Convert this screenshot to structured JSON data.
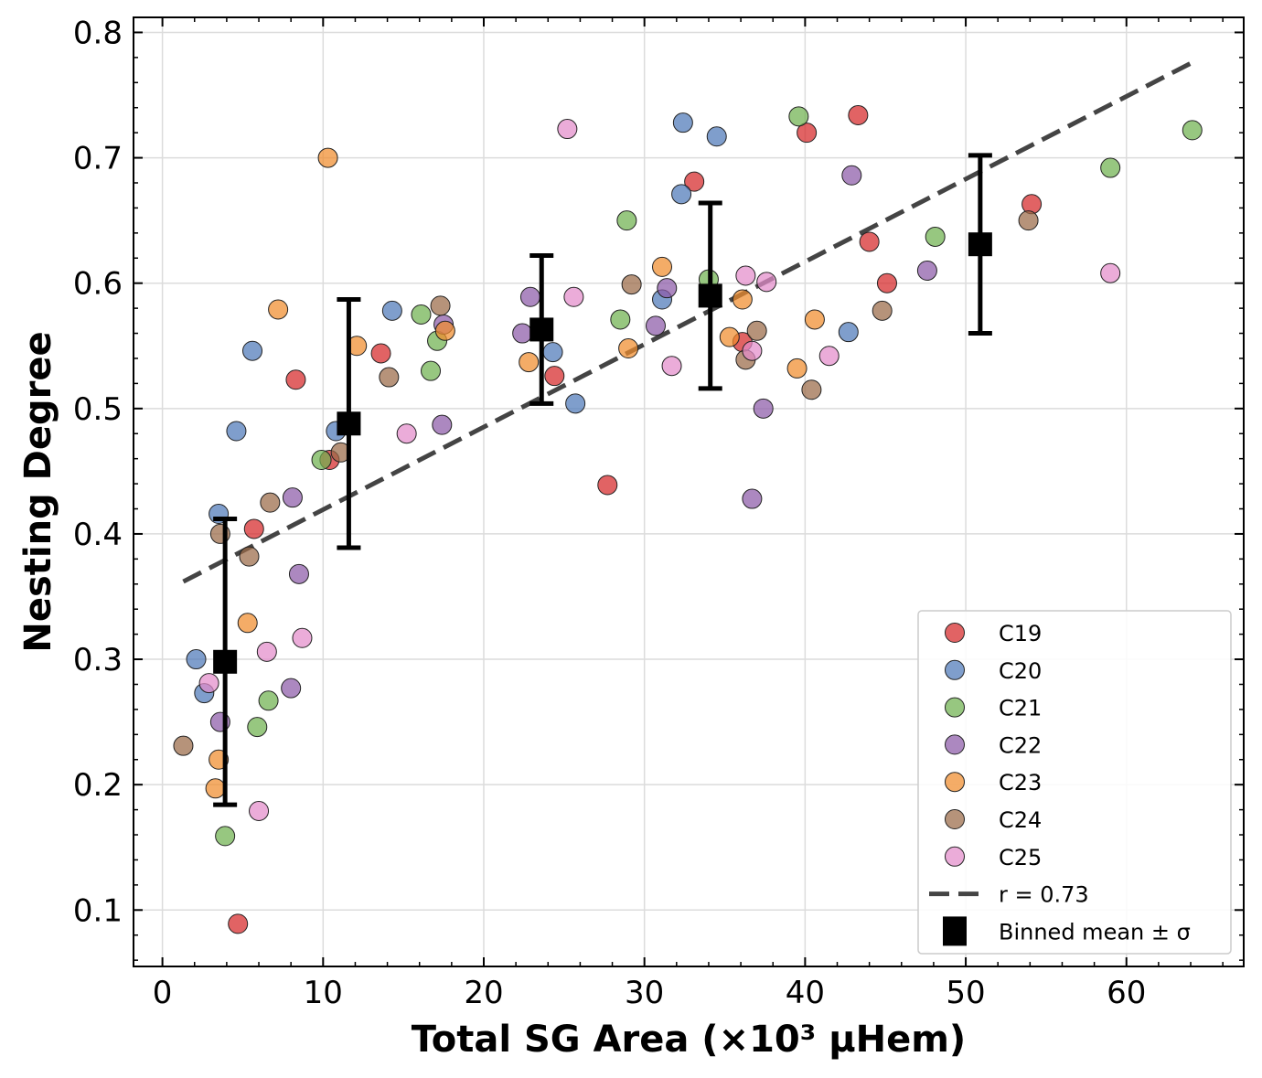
{
  "chart_data": {
    "type": "scatter",
    "xlabel": "Total SG Area (×10³ μHem)",
    "ylabel": "Nesting Degree",
    "xlim": [
      -1.8,
      67.3
    ],
    "ylim": [
      0.055,
      0.812
    ],
    "xticks": [
      0,
      10,
      20,
      30,
      40,
      50,
      60
    ],
    "yticks": [
      0.1,
      0.2,
      0.3,
      0.4,
      0.5,
      0.6,
      0.7,
      0.8
    ],
    "xtick_labels": [
      "0",
      "10",
      "20",
      "30",
      "40",
      "50",
      "60"
    ],
    "ytick_labels": [
      "0.1",
      "0.2",
      "0.3",
      "0.4",
      "0.5",
      "0.6",
      "0.7",
      "0.8"
    ],
    "grid": true,
    "legend_position": "lower-right",
    "series": [
      {
        "name": "C19",
        "color": "#d62728",
        "points": [
          [
            4.7,
            0.089
          ],
          [
            5.7,
            0.404
          ],
          [
            8.3,
            0.523
          ],
          [
            10.4,
            0.459
          ],
          [
            13.6,
            0.544
          ],
          [
            24.4,
            0.526
          ],
          [
            27.7,
            0.439
          ],
          [
            33.1,
            0.681
          ],
          [
            36.1,
            0.553
          ],
          [
            40.1,
            0.72
          ],
          [
            43.3,
            0.734
          ],
          [
            44.0,
            0.633
          ],
          [
            45.1,
            0.6
          ],
          [
            54.1,
            0.663
          ]
        ]
      },
      {
        "name": "C20",
        "color": "#4e79b9",
        "points": [
          [
            2.1,
            0.3
          ],
          [
            2.6,
            0.273
          ],
          [
            3.5,
            0.416
          ],
          [
            4.6,
            0.482
          ],
          [
            5.6,
            0.546
          ],
          [
            10.8,
            0.482
          ],
          [
            14.3,
            0.578
          ],
          [
            24.3,
            0.545
          ],
          [
            25.7,
            0.504
          ],
          [
            31.1,
            0.587
          ],
          [
            32.3,
            0.671
          ],
          [
            32.4,
            0.728
          ],
          [
            34.5,
            0.717
          ],
          [
            42.7,
            0.561
          ]
        ]
      },
      {
        "name": "C21",
        "color": "#6fb24f",
        "points": [
          [
            3.9,
            0.159
          ],
          [
            5.9,
            0.246
          ],
          [
            6.6,
            0.267
          ],
          [
            9.9,
            0.459
          ],
          [
            16.1,
            0.575
          ],
          [
            16.7,
            0.53
          ],
          [
            17.1,
            0.554
          ],
          [
            28.5,
            0.571
          ],
          [
            28.9,
            0.65
          ],
          [
            34.0,
            0.603
          ],
          [
            39.6,
            0.733
          ],
          [
            48.1,
            0.637
          ],
          [
            59.0,
            0.692
          ],
          [
            64.1,
            0.722
          ]
        ]
      },
      {
        "name": "C22",
        "color": "#8c5aa8",
        "points": [
          [
            3.6,
            0.25
          ],
          [
            8.0,
            0.277
          ],
          [
            8.1,
            0.429
          ],
          [
            8.5,
            0.368
          ],
          [
            17.4,
            0.487
          ],
          [
            17.5,
            0.567
          ],
          [
            22.4,
            0.56
          ],
          [
            22.9,
            0.589
          ],
          [
            30.7,
            0.566
          ],
          [
            31.4,
            0.596
          ],
          [
            36.7,
            0.428
          ],
          [
            37.4,
            0.5
          ],
          [
            42.9,
            0.686
          ],
          [
            47.6,
            0.61
          ]
        ]
      },
      {
        "name": "C23",
        "color": "#f08c2d",
        "points": [
          [
            3.3,
            0.197
          ],
          [
            3.5,
            0.22
          ],
          [
            5.3,
            0.329
          ],
          [
            7.2,
            0.579
          ],
          [
            10.3,
            0.7
          ],
          [
            12.1,
            0.55
          ],
          [
            17.6,
            0.562
          ],
          [
            22.8,
            0.537
          ],
          [
            29.0,
            0.548
          ],
          [
            31.1,
            0.613
          ],
          [
            35.3,
            0.557
          ],
          [
            36.1,
            0.587
          ],
          [
            39.5,
            0.532
          ],
          [
            40.6,
            0.571
          ]
        ]
      },
      {
        "name": "C24",
        "color": "#9a6a47",
        "points": [
          [
            1.3,
            0.231
          ],
          [
            3.6,
            0.4
          ],
          [
            5.4,
            0.382
          ],
          [
            6.7,
            0.425
          ],
          [
            11.1,
            0.465
          ],
          [
            14.1,
            0.525
          ],
          [
            17.3,
            0.582
          ],
          [
            29.2,
            0.599
          ],
          [
            36.3,
            0.539
          ],
          [
            37.0,
            0.562
          ],
          [
            40.4,
            0.515
          ],
          [
            44.8,
            0.578
          ],
          [
            53.9,
            0.65
          ]
        ]
      },
      {
        "name": "C25",
        "color": "#e38ccb",
        "points": [
          [
            2.9,
            0.281
          ],
          [
            6.0,
            0.179
          ],
          [
            6.5,
            0.306
          ],
          [
            8.7,
            0.317
          ],
          [
            15.2,
            0.48
          ],
          [
            25.2,
            0.723
          ],
          [
            25.6,
            0.589
          ],
          [
            31.7,
            0.534
          ],
          [
            36.3,
            0.606
          ],
          [
            36.7,
            0.546
          ],
          [
            37.6,
            0.601
          ],
          [
            41.5,
            0.542
          ],
          [
            59.0,
            0.608
          ]
        ]
      }
    ],
    "trend_line": {
      "label": "r = 0.73",
      "x": [
        1.3,
        64.1
      ],
      "y": [
        0.362,
        0.776
      ]
    },
    "binned": {
      "label": "Binned mean ± σ",
      "x": [
        3.9,
        11.6,
        23.6,
        34.1,
        50.9
      ],
      "mean": [
        0.298,
        0.488,
        0.563,
        0.59,
        0.631
      ],
      "sigma": [
        0.114,
        0.099,
        0.059,
        0.074,
        0.071
      ]
    }
  }
}
